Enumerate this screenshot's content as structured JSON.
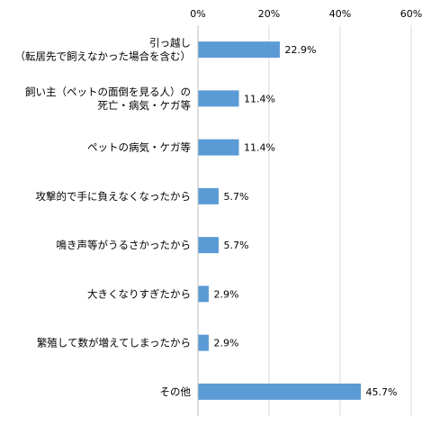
{
  "chart_data": {
    "type": "bar",
    "orientation": "horizontal",
    "title": "",
    "xlabel": "",
    "ylabel": "",
    "x_ticks": [
      "0%",
      "20%",
      "40%",
      "60%"
    ],
    "xlim": [
      0,
      60
    ],
    "grid": true,
    "legend": "none",
    "bar_color": "#5b9bd5",
    "categories": [
      [
        "引っ越し",
        "（転居先で飼えなかった場合を含む）"
      ],
      [
        "飼い主（ペットの面倒を見る人）の",
        "死亡・病気・ケガ等"
      ],
      [
        "ペットの病気・ケガ等"
      ],
      [
        "攻撃的で手に負えなくなったから"
      ],
      [
        "鳴き声等がうるさかったから"
      ],
      [
        "大きくなりすぎたから"
      ],
      [
        "繁殖して数が増えてしまったから"
      ],
      [
        "その他"
      ]
    ],
    "values": [
      22.9,
      11.4,
      11.4,
      5.7,
      5.7,
      2.9,
      2.9,
      45.7
    ],
    "value_labels": [
      "22.9%",
      "11.4%",
      "11.4%",
      "5.7%",
      "5.7%",
      "2.9%",
      "2.9%",
      "45.7%"
    ]
  }
}
